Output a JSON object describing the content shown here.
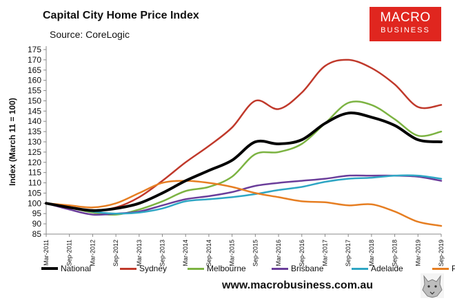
{
  "header": {
    "title": "Capital City Home Price Index",
    "subtitle": "Source: CoreLogic"
  },
  "logo": {
    "line1": "MACRO",
    "line2": "BUSINESS",
    "color": "#e0261f"
  },
  "footer": {
    "url": "www.macrobusiness.com.au",
    "icon": "wolf-icon"
  },
  "chart_data": {
    "type": "line",
    "title": "Capital City Home Price Index",
    "subtitle": "Source: CoreLogic",
    "ylabel": "Index (March 11 = 100)",
    "xlabel": "",
    "ylim": [
      85,
      175
    ],
    "yticks": [
      85,
      90,
      95,
      100,
      105,
      110,
      115,
      120,
      125,
      130,
      135,
      140,
      145,
      150,
      155,
      160,
      165,
      170,
      175
    ],
    "xticks": [
      "Mar-2011",
      "Sep-2011",
      "Mar-2012",
      "Sep-2012",
      "Mar-2013",
      "Sep-2013",
      "Mar-2014",
      "Sep-2014",
      "Mar-2015",
      "Sep-2015",
      "Mar-2016",
      "Sep-2016",
      "Mar-2017",
      "Sep-2017",
      "Mar-2018",
      "Sep-2018",
      "Mar-2019",
      "Sep-2019"
    ],
    "x": [
      "Mar-2011",
      "Sep-2011",
      "Mar-2012",
      "Sep-2012",
      "Mar-2013",
      "Sep-2013",
      "Mar-2014",
      "Sep-2014",
      "Mar-2015",
      "Sep-2015",
      "Mar-2016",
      "Sep-2016",
      "Mar-2017",
      "Sep-2017",
      "Mar-2018",
      "Sep-2018",
      "Mar-2019",
      "Sep-2019"
    ],
    "grid": false,
    "legend": "bottom",
    "series": [
      {
        "name": "National",
        "color": "#000000",
        "width": 4,
        "values": [
          100,
          98,
          96.5,
          97.5,
          100,
          105,
          111,
          116,
          121,
          130,
          129,
          131,
          139,
          144,
          142,
          138,
          131,
          130
        ]
      },
      {
        "name": "Sydney",
        "color": "#c0392b",
        "width": 2.5,
        "values": [
          100,
          98,
          96.5,
          98,
          103,
          111,
          120,
          128,
          137,
          150,
          146,
          154,
          167,
          170,
          166,
          158,
          147,
          148
        ]
      },
      {
        "name": "Melbourne",
        "color": "#7cb342",
        "width": 2.5,
        "values": [
          100,
          98,
          95.5,
          94.5,
          97,
          101,
          106,
          108,
          113,
          124,
          125,
          129,
          139,
          149,
          148,
          141,
          133,
          135
        ]
      },
      {
        "name": "Brisbane",
        "color": "#6a3d9a",
        "width": 2.5,
        "values": [
          100,
          97,
          94.5,
          95,
          96,
          99,
          102,
          103.5,
          105.5,
          108.5,
          110,
          111,
          112,
          113.5,
          113.5,
          113.5,
          113,
          111
        ]
      },
      {
        "name": "Adelaide",
        "color": "#2ea6c4",
        "width": 2.5,
        "values": [
          100,
          98,
          96,
          95,
          95.5,
          97.5,
          101,
          102,
          103,
          104.5,
          106.5,
          108,
          110.5,
          112,
          112.5,
          113.5,
          113.5,
          112
        ]
      },
      {
        "name": "Perth",
        "color": "#e67e22",
        "width": 2.5,
        "values": [
          100,
          99,
          98,
          100,
          105,
          110,
          111,
          110,
          108,
          105,
          103,
          101,
          100.5,
          99,
          99.5,
          96,
          91,
          89
        ]
      }
    ]
  }
}
